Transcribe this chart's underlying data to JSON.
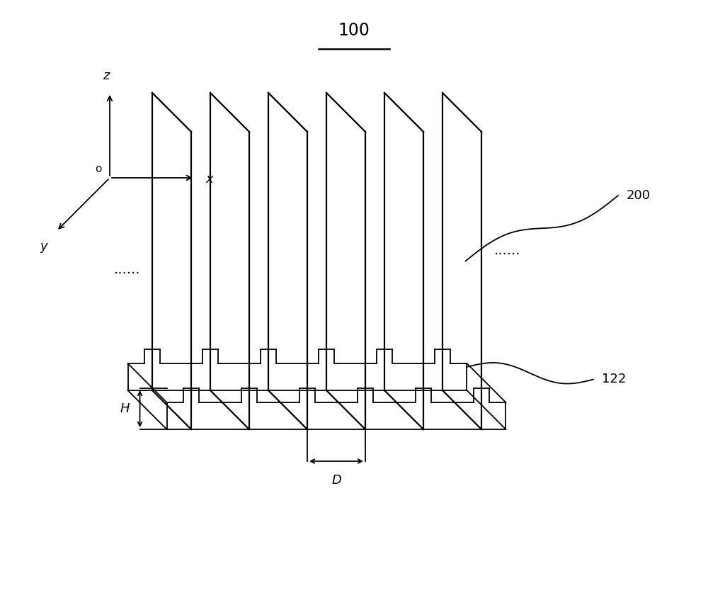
{
  "title": "100",
  "background_color": "#ffffff",
  "line_color": "#000000",
  "n_plates": 6,
  "label_200": "200",
  "label_122": "122",
  "label_H": "H",
  "label_D": "D",
  "figsize": [
    10.0,
    8.61
  ],
  "dpi": 100
}
